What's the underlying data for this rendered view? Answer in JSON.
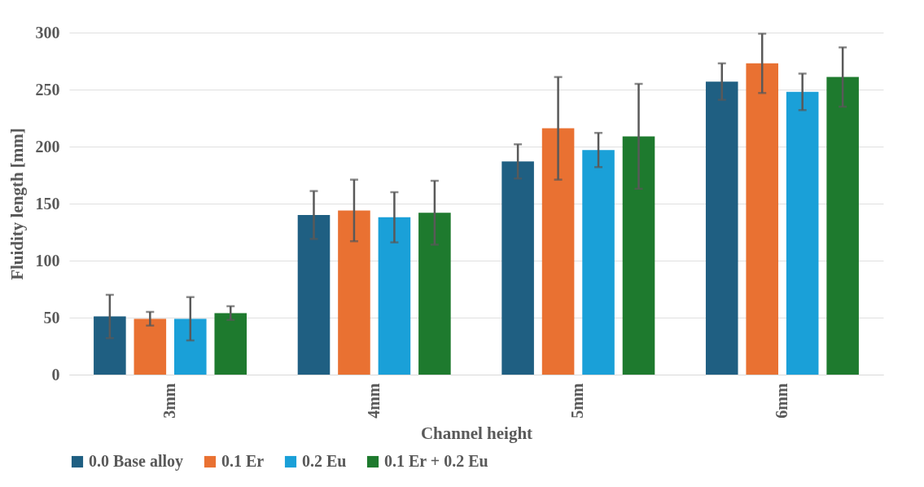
{
  "chart_data": {
    "type": "bar",
    "xlabel": "Channel height",
    "ylabel": "Fluidity length [mm]",
    "categories": [
      "3mm",
      "4mm",
      "5mm",
      "6mm"
    ],
    "series": [
      {
        "name": "0.0 Base alloy",
        "color": "#1f5f82",
        "values": [
          51,
          140,
          187,
          257
        ],
        "errors": [
          19,
          21,
          15,
          16
        ]
      },
      {
        "name": "0.1 Er",
        "color": "#e97132",
        "values": [
          49,
          144,
          216,
          273
        ],
        "errors": [
          6,
          27,
          45,
          26
        ]
      },
      {
        "name": "0.2 Eu",
        "color": "#1aa0d8",
        "values": [
          49,
          138,
          197,
          248
        ],
        "errors": [
          19,
          22,
          15,
          16
        ]
      },
      {
        "name": "0.1 Er + 0.2 Eu",
        "color": "#1e7a2e",
        "values": [
          54,
          142,
          209,
          261
        ],
        "errors": [
          6,
          28,
          46,
          26
        ]
      }
    ],
    "ylim": [
      0,
      300
    ],
    "yticks": [
      0,
      50,
      100,
      150,
      200,
      250,
      300
    ],
    "grid": "y",
    "legend": "bottom"
  }
}
